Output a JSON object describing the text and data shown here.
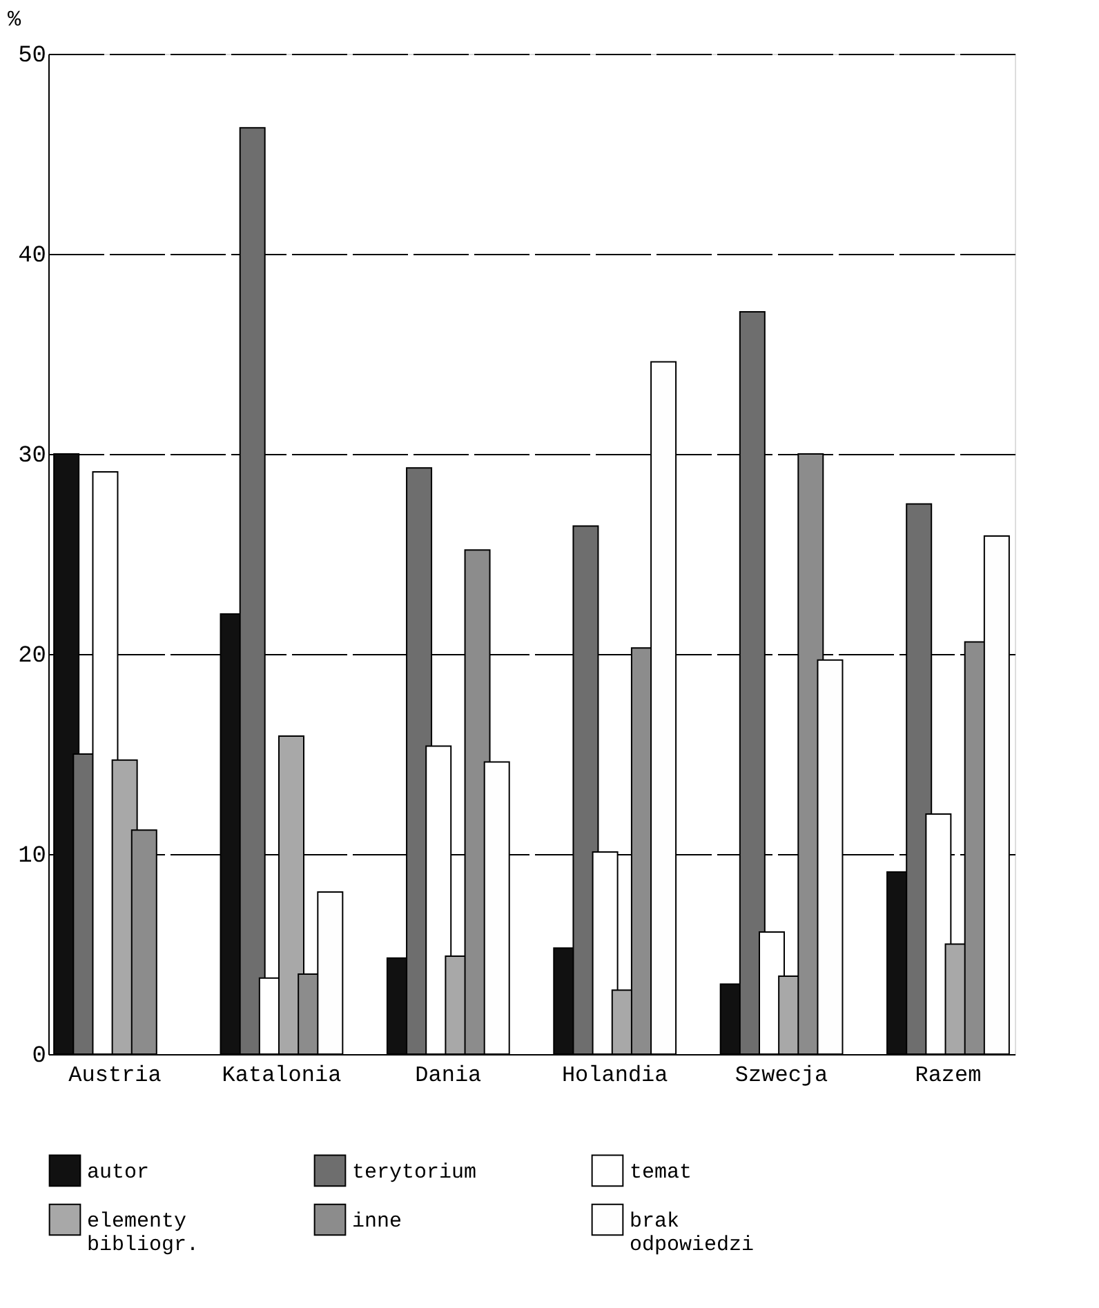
{
  "chart_data": {
    "type": "bar",
    "ylabel": "%",
    "categories": [
      "Austria",
      "Katalonia",
      "Dania",
      "Holandia",
      "Szwecja",
      "Razem"
    ],
    "series": [
      {
        "name": "autor",
        "color": "#111111",
        "values": [
          30,
          22,
          4.8,
          5.3,
          3.5,
          9.1
        ]
      },
      {
        "name": "terytorium",
        "color": "#6e6e6e",
        "values": [
          15,
          46.3,
          29.3,
          26.4,
          37.1,
          27.5
        ]
      },
      {
        "name": "temat",
        "color": "#ffffff",
        "values": [
          29.1,
          3.8,
          15.4,
          10.1,
          6.1,
          12.0
        ]
      },
      {
        "name": "elementy bibliogr.",
        "color": "#a8a8a8",
        "values": [
          14.7,
          15.9,
          4.9,
          3.2,
          3.9,
          5.5
        ]
      },
      {
        "name": "inne",
        "color": "#8c8c8c",
        "values": [
          11.2,
          4.0,
          25.2,
          20.3,
          30.0,
          20.6
        ]
      },
      {
        "name": "brak odpowiedzi",
        "color": "#fefefe",
        "values": [
          null,
          8.1,
          14.6,
          34.6,
          19.7,
          25.9
        ]
      }
    ],
    "ylim": [
      0,
      50
    ],
    "yticks": [
      0,
      10,
      20,
      30,
      40,
      50
    ],
    "grid": "y",
    "legend": "bottom"
  }
}
